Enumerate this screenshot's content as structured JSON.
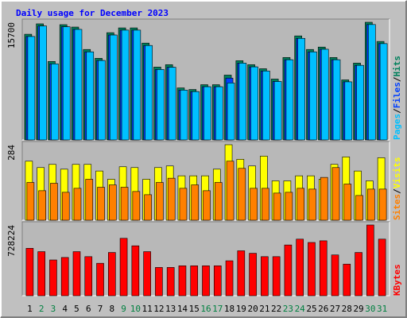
{
  "chart_data": [
    {
      "type": "bar",
      "title": "Daily usage for December 2023",
      "series": [
        {
          "name": "Hits",
          "color": "#00805c",
          "values": [
            14100,
            15490,
            10470,
            15380,
            15060,
            12070,
            10890,
            14310,
            14950,
            14950,
            12920,
            9720,
            10040,
            6940,
            6730,
            7370,
            7370,
            8650,
            10570,
            10040,
            9500,
            8120,
            11000,
            13880,
            12070,
            12390,
            11000,
            8010,
            10250,
            15700,
            13140
          ]
        },
        {
          "name": "Files",
          "color": "#0040ff",
          "values": [
            13800,
            15200,
            10150,
            15100,
            14750,
            11750,
            10600,
            14000,
            14650,
            14650,
            12600,
            9400,
            9700,
            6650,
            6450,
            7100,
            7100,
            8250,
            10250,
            9750,
            9200,
            7800,
            10700,
            13550,
            11750,
            12100,
            10700,
            7750,
            9950,
            15400,
            12850
          ]
        },
        {
          "name": "Pages",
          "color": "#00c0ff",
          "values": [
            13800,
            15200,
            10150,
            15100,
            14750,
            11750,
            10600,
            14000,
            14650,
            14650,
            12600,
            9400,
            9700,
            6650,
            6450,
            7100,
            7100,
            7600,
            10250,
            9750,
            9200,
            7800,
            10700,
            13550,
            11750,
            12100,
            10700,
            7750,
            9950,
            15400,
            12850
          ]
        }
      ],
      "legend_separator": "/",
      "ylim": [
        0,
        15700
      ],
      "yticks": [
        15700
      ]
    },
    {
      "type": "bar",
      "series": [
        {
          "name": "Visits",
          "color": "#ffff00",
          "values": [
            222,
            198,
            210,
            192,
            210,
            210,
            185,
            154,
            201,
            198,
            154,
            198,
            204,
            167,
            167,
            167,
            192,
            284,
            229,
            204,
            241,
            148,
            148,
            167,
            167,
            154,
            210,
            238,
            185,
            148,
            235
          ]
        },
        {
          "name": "Sites",
          "color": "#ff8000",
          "values": [
            142,
            111,
            139,
            105,
            120,
            154,
            124,
            133,
            124,
            108,
            96,
            142,
            158,
            120,
            133,
            111,
            142,
            222,
            195,
            120,
            120,
            102,
            105,
            120,
            117,
            161,
            198,
            136,
            93,
            117,
            117
          ]
        }
      ],
      "legend_separator": "/",
      "ylim": [
        0,
        284
      ],
      "yticks": [
        284
      ]
    },
    {
      "type": "bar",
      "series": [
        {
          "name": "KBytes",
          "color": "#ff0000",
          "values": [
            488300,
            453900,
            368200,
            393900,
            453900,
            402500,
            334100,
            445400,
            591000,
            513900,
            453900,
            291300,
            291300,
            308400,
            308400,
            308400,
            308400,
            359800,
            462600,
            436900,
            402500,
            402500,
            522600,
            582600,
            548300,
            565400,
            419800,
            325500,
            445400,
            728224,
            582600
          ]
        }
      ],
      "ylim": [
        0,
        728224
      ],
      "yticks": [
        728224
      ],
      "categories": [
        "1",
        "2",
        "3",
        "4",
        "5",
        "6",
        "7",
        "8",
        "9",
        "10",
        "11",
        "12",
        "13",
        "14",
        "15",
        "16",
        "17",
        "18",
        "19",
        "20",
        "21",
        "22",
        "23",
        "24",
        "25",
        "26",
        "27",
        "28",
        "29",
        "30",
        "31"
      ],
      "category_colors": [
        "#000000",
        "#008040",
        "#008040",
        "#000000",
        "#000000",
        "#000000",
        "#000000",
        "#000000",
        "#008040",
        "#008040",
        "#000000",
        "#000000",
        "#000000",
        "#000000",
        "#000000",
        "#008040",
        "#008040",
        "#000000",
        "#000000",
        "#000000",
        "#000000",
        "#000000",
        "#008040",
        "#008040",
        "#000000",
        "#000000",
        "#000000",
        "#000000",
        "#000000",
        "#008040",
        "#008040"
      ]
    }
  ]
}
